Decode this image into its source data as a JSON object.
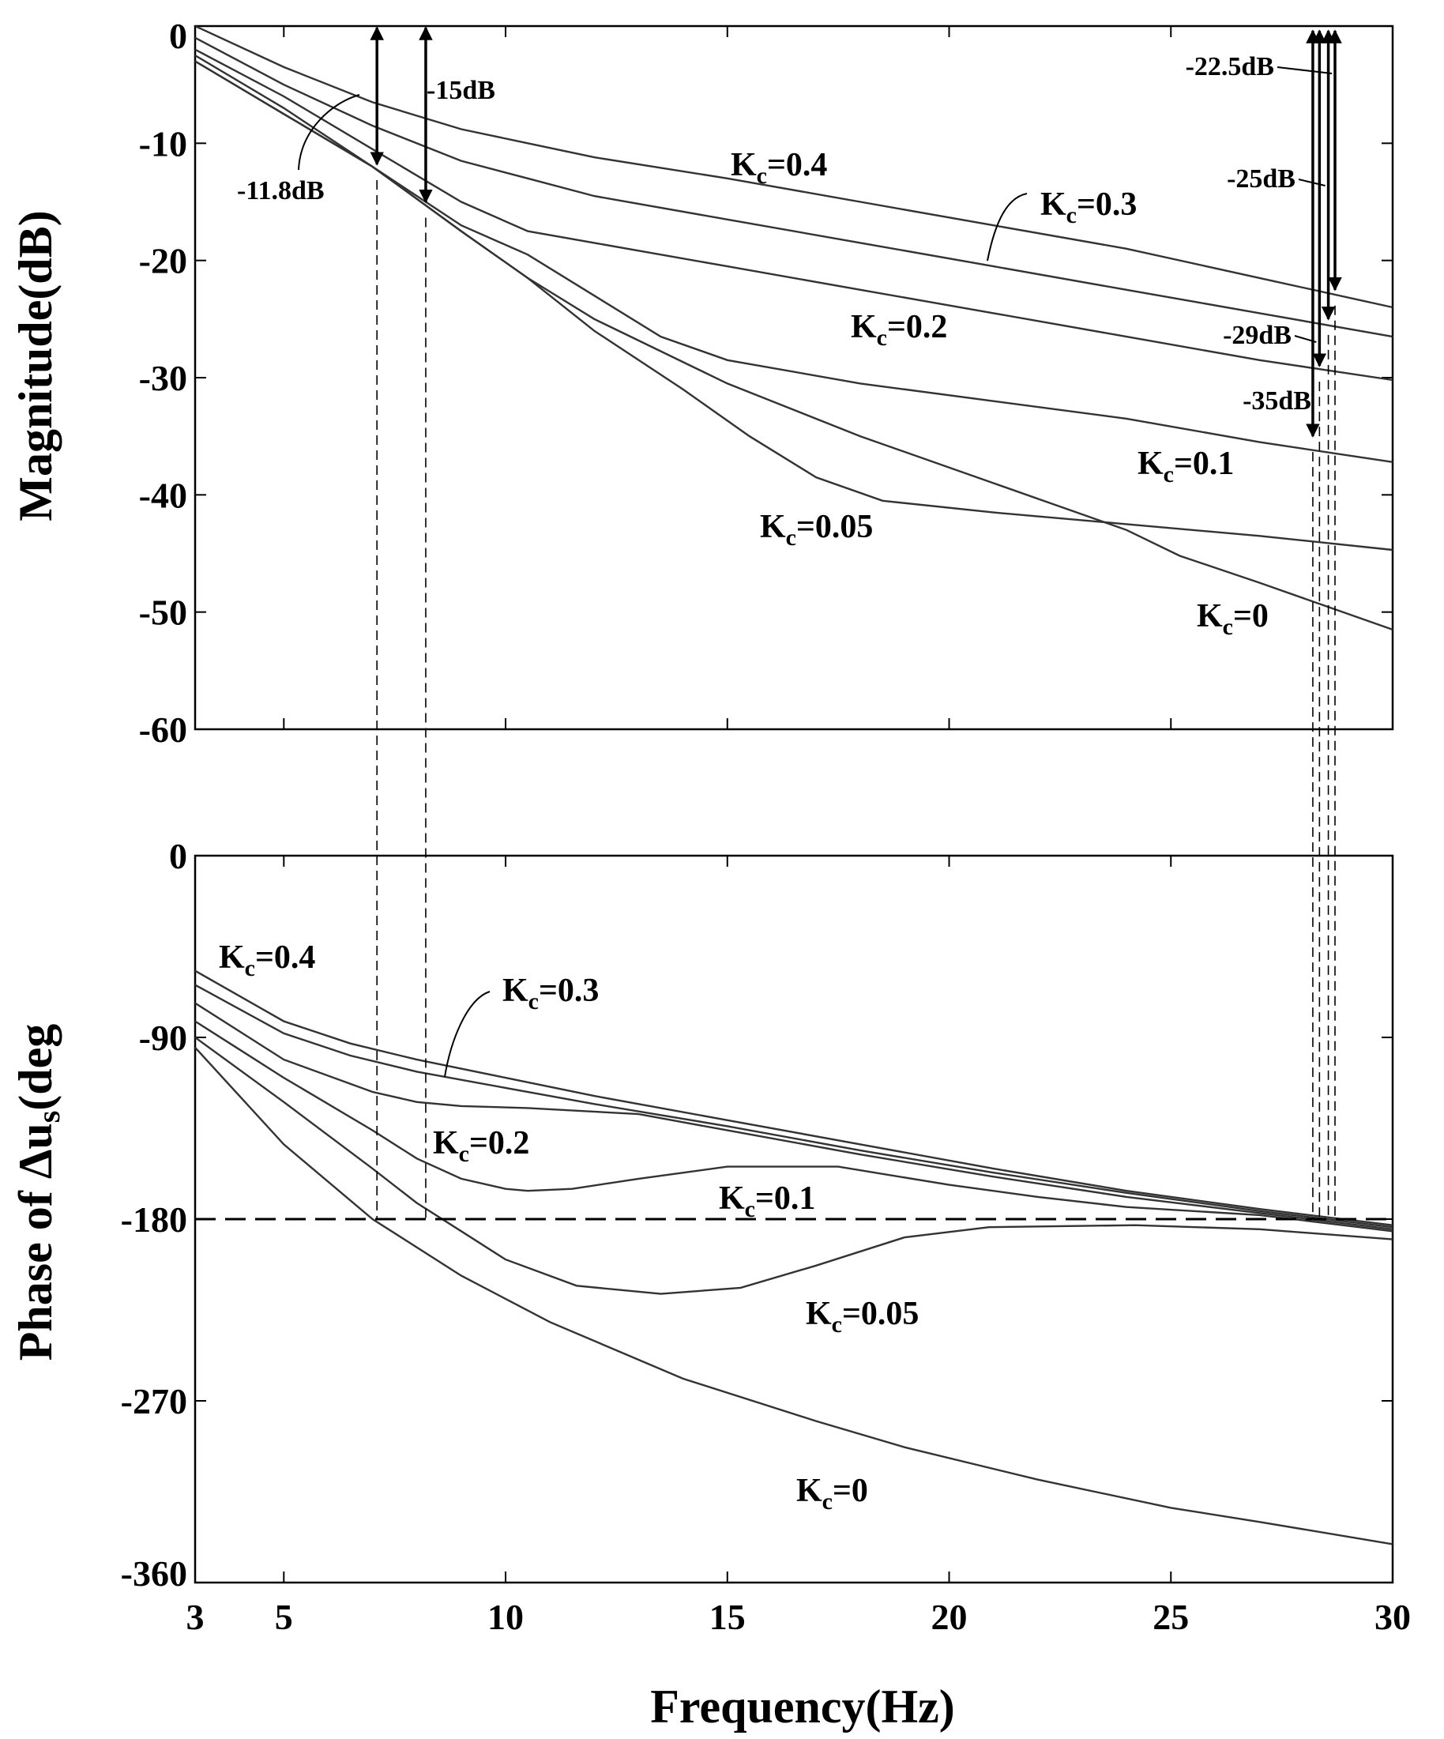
{
  "chart_data": [
    {
      "type": "line",
      "panel": "magnitude",
      "ylabel": "Magnitude(dB)",
      "xlim": [
        3,
        30
      ],
      "ylim": [
        -60,
        0
      ],
      "yticks": [
        0,
        -10,
        -20,
        -30,
        -40,
        -50,
        -60
      ],
      "ytick_labels": [
        "0",
        "-10",
        "-20",
        "-30",
        "-40",
        "-50",
        "-60"
      ],
      "series": [
        {
          "name": "Kc=0.4",
          "label": "K",
          "sub": "c",
          "eq": "=0.4",
          "x": [
            3,
            5,
            7,
            9,
            10.5,
            12,
            15,
            18,
            21,
            24,
            27,
            30
          ],
          "y": [
            0,
            -3.5,
            -6.5,
            -8.8,
            -10,
            -11.2,
            -13,
            -15,
            -17,
            -19,
            -21.5,
            -24
          ]
        },
        {
          "name": "Kc=0.3",
          "label": "K",
          "sub": "c",
          "eq": "=0.3",
          "x": [
            3,
            5,
            7,
            9,
            10.5,
            12,
            15,
            18,
            21,
            24,
            27,
            30
          ],
          "y": [
            -1,
            -5,
            -8.5,
            -11.5,
            -13,
            -14.5,
            -16.5,
            -18.5,
            -20.5,
            -22.5,
            -24.5,
            -26.5
          ]
        },
        {
          "name": "Kc=0.2",
          "label": "K",
          "sub": "c",
          "eq": "=0.2",
          "x": [
            3,
            5,
            7,
            9,
            10.5,
            12,
            15,
            18,
            21,
            24,
            27,
            30
          ],
          "y": [
            -2,
            -6,
            -10.5,
            -15,
            -17.5,
            -18.5,
            -20.5,
            -22.5,
            -24.5,
            -26.5,
            -28.5,
            -30.2
          ]
        },
        {
          "name": "Kc=0.1",
          "label": "K",
          "sub": "c",
          "eq": "=0.1",
          "x": [
            3,
            5,
            7,
            9,
            10.5,
            12,
            13.5,
            15,
            18,
            21,
            24,
            27,
            30
          ],
          "y": [
            -2.5,
            -7,
            -12,
            -17,
            -19.5,
            -23,
            -26.5,
            -28.5,
            -30.5,
            -32,
            -33.5,
            -35.5,
            -37.2
          ]
        },
        {
          "name": "Kc=0.05",
          "label": "K",
          "sub": "c",
          "eq": "=0.05",
          "x": [
            3,
            5,
            7,
            9,
            10.5,
            12,
            14,
            15.5,
            17,
            18.5,
            21,
            24,
            27,
            30
          ],
          "y": [
            -3,
            -7.5,
            -12,
            -17.5,
            -21.5,
            -26,
            -31,
            -35,
            -38.5,
            -40.5,
            -41.5,
            -42.5,
            -43.5,
            -44.7
          ]
        },
        {
          "name": "Kc=0",
          "label": "K",
          "sub": "c",
          "eq": "=0",
          "x": [
            3,
            5,
            7,
            9,
            10.5,
            12,
            15,
            18,
            21,
            24,
            25.2,
            27,
            30
          ],
          "y": [
            -3,
            -7.5,
            -12,
            -17.5,
            -21.5,
            -25,
            -30.5,
            -35,
            -39,
            -43,
            -45.2,
            -47.5,
            -51.5
          ]
        }
      ],
      "annotations": [
        {
          "text": "-11.8dB",
          "x": 7.1,
          "y": -11.8
        },
        {
          "text": "-15dB",
          "x": 8.2,
          "y": -15
        },
        {
          "text": "-22.5dB",
          "x": 28.7,
          "y": -22.5
        },
        {
          "text": "-25dB",
          "x": 28.55,
          "y": -25
        },
        {
          "text": "-29dB",
          "x": 28.35,
          "y": -29
        },
        {
          "text": "-35dB",
          "x": 28.2,
          "y": -35
        }
      ]
    },
    {
      "type": "line",
      "panel": "phase",
      "ylabel": "Phase of Δu",
      "ylabel_sub": "s",
      "ylabel_unit": "(deg",
      "xlabel": "Frequency(Hz)",
      "xlim": [
        3,
        30
      ],
      "ylim": [
        -360,
        0
      ],
      "xticks": [
        3,
        5,
        10,
        15,
        20,
        25,
        30
      ],
      "xtick_labels": [
        "3",
        "5",
        "10",
        "15",
        "20",
        "25",
        "30"
      ],
      "yticks": [
        0,
        -90,
        -180,
        -270,
        -360
      ],
      "ytick_labels": [
        "0",
        "-90",
        "-180",
        "-270",
        "-360"
      ],
      "reference_line": -180,
      "series": [
        {
          "name": "Kc=0.4",
          "label": "K",
          "sub": "c",
          "eq": "=0.4",
          "x": [
            3,
            5,
            6.5,
            8,
            10,
            12,
            15,
            18,
            21,
            24,
            27,
            30
          ],
          "y": [
            -57,
            -82,
            -93,
            -101,
            -110,
            -119,
            -131,
            -143,
            -155,
            -166,
            -175,
            -183
          ]
        },
        {
          "name": "Kc=0.3",
          "label": "K",
          "sub": "c",
          "eq": "=0.3",
          "x": [
            3,
            5,
            6.5,
            8,
            10,
            12,
            15,
            18,
            21,
            24,
            27,
            30
          ],
          "y": [
            -64,
            -88,
            -99,
            -107,
            -115,
            -123,
            -134,
            -146,
            -157,
            -167,
            -176,
            -184
          ]
        },
        {
          "name": "Kc=0.2",
          "label": "K",
          "sub": "c",
          "eq": "=0.2",
          "x": [
            3,
            5,
            7,
            8,
            9,
            10.5,
            13,
            15,
            18,
            21,
            24,
            27,
            30
          ],
          "y": [
            -73,
            -101,
            -117,
            -122,
            -124,
            -125,
            -128,
            -136,
            -148,
            -159,
            -169,
            -177,
            -185
          ]
        },
        {
          "name": "Kc=0.1",
          "label": "K",
          "sub": "c",
          "eq": "=0.1",
          "x": [
            3,
            4,
            5,
            6,
            7,
            8,
            9,
            10,
            10.5,
            11.5,
            13,
            15,
            17.5,
            20,
            22,
            24,
            27,
            30
          ],
          "y": [
            -82,
            -96,
            -110,
            -123,
            -136,
            -150,
            -160,
            -165,
            -166,
            -165,
            -160,
            -154,
            -154,
            -163,
            -169,
            -174,
            -178,
            -186
          ]
        },
        {
          "name": "Kc=0.05",
          "label": "K",
          "sub": "c",
          "eq": "=0.05",
          "x": [
            3,
            5,
            7,
            8,
            9,
            10,
            11.6,
            13.5,
            15.3,
            17,
            19,
            20.9,
            24.2,
            27,
            30
          ],
          "y": [
            -90,
            -122,
            -155,
            -172,
            -186,
            -200,
            -213,
            -217,
            -214,
            -203,
            -189,
            -184,
            -183,
            -185,
            -190
          ]
        },
        {
          "name": "Kc=0",
          "label": "K",
          "sub": "c",
          "eq": "=0",
          "x": [
            3,
            5,
            7,
            9,
            11,
            14,
            17,
            19,
            22,
            25,
            27,
            30
          ],
          "y": [
            -95,
            -143,
            -180,
            -208,
            -231,
            -259,
            -280,
            -293,
            -309,
            -323,
            -330,
            -341
          ]
        }
      ]
    }
  ]
}
